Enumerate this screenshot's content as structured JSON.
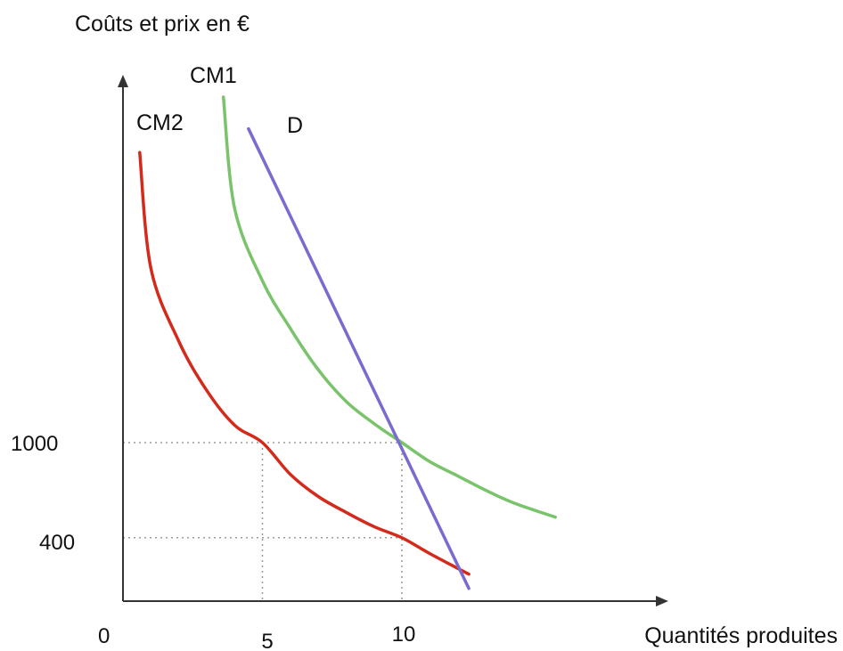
{
  "chart_data": {
    "type": "line",
    "ylabel": "Coûts et prix en €",
    "xlabel": "Quantités produites",
    "origin_label": "0",
    "x_ticks": [
      {
        "value": 5,
        "label": "5"
      },
      {
        "value": 10,
        "label": "10"
      }
    ],
    "y_ticks": [
      {
        "value": 1000,
        "label": "1000"
      },
      {
        "value": 400,
        "label": "400"
      }
    ],
    "reference_points": [
      {
        "x": 5,
        "y": 1000
      },
      {
        "x": 10,
        "y": 1000
      },
      {
        "x": 10,
        "y": 400
      }
    ],
    "series": [
      {
        "name": "CM2",
        "color": "#d42a1c",
        "points": [
          [
            0.6,
            2830
          ],
          [
            1,
            2100
          ],
          [
            2,
            1640
          ],
          [
            3,
            1330
          ],
          [
            4,
            1110
          ],
          [
            5,
            1000
          ],
          [
            6,
            800
          ],
          [
            7,
            660
          ],
          [
            8,
            560
          ],
          [
            9,
            470
          ],
          [
            10,
            400
          ],
          [
            11,
            300
          ],
          [
            12.4,
            170
          ]
        ]
      },
      {
        "name": "CM1",
        "color": "#79c36a",
        "points": [
          [
            3.6,
            3180
          ],
          [
            4,
            2480
          ],
          [
            5,
            2020
          ],
          [
            6,
            1720
          ],
          [
            7,
            1460
          ],
          [
            8,
            1260
          ],
          [
            9,
            1120
          ],
          [
            10,
            1000
          ],
          [
            11,
            880
          ],
          [
            12,
            790
          ],
          [
            13,
            700
          ],
          [
            14,
            620
          ],
          [
            15.5,
            530
          ]
        ]
      },
      {
        "name": "D",
        "color": "#7b6bd0",
        "points": [
          [
            4.5,
            2980
          ],
          [
            12.4,
            80
          ]
        ]
      }
    ]
  }
}
